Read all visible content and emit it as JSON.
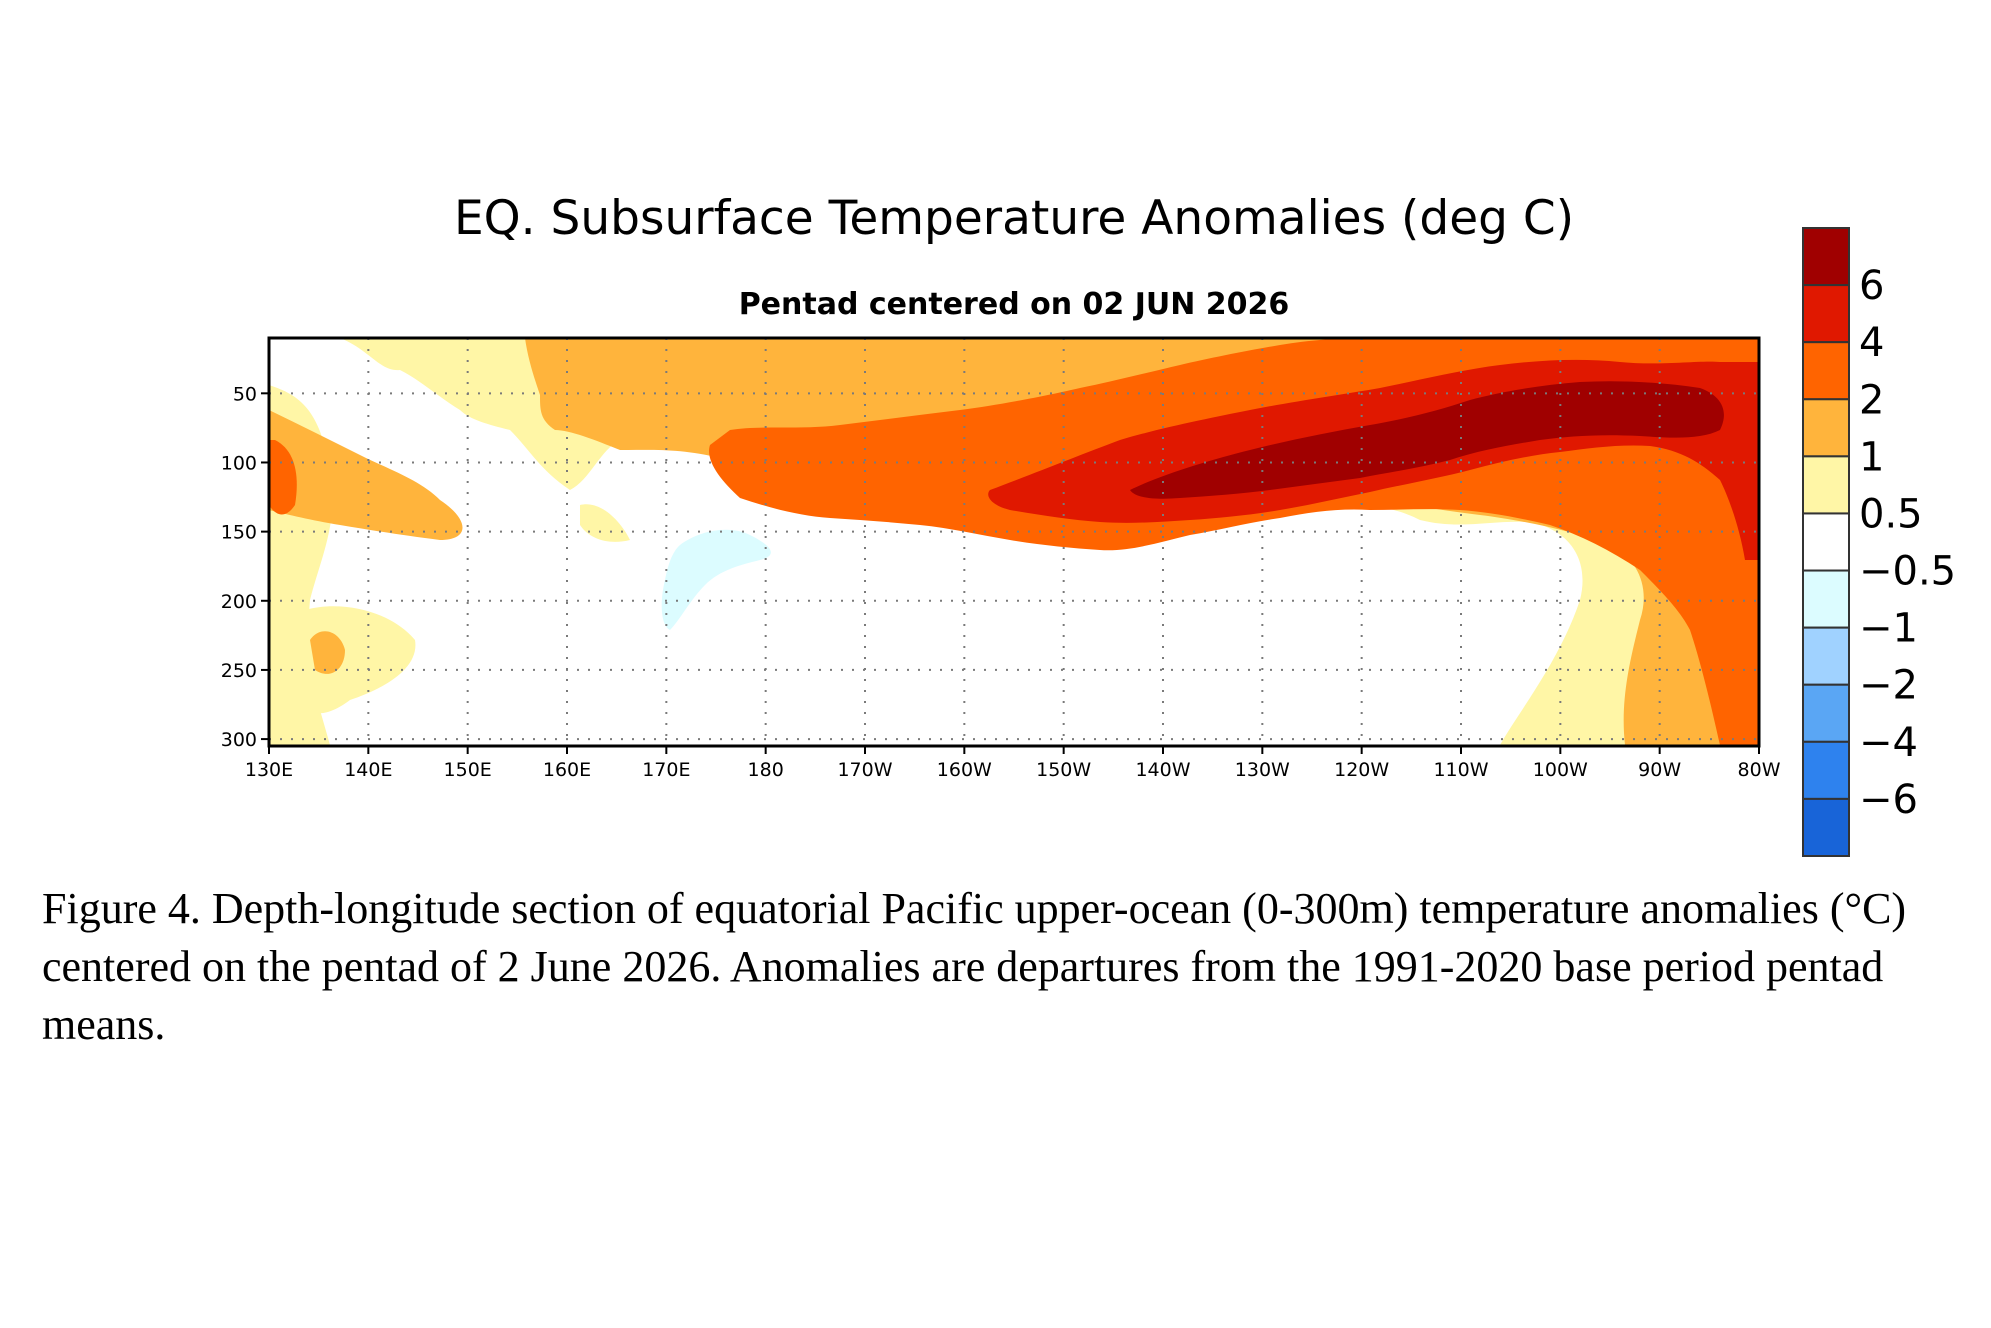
{
  "chart_data": {
    "type": "heatmap",
    "title": "EQ. Subsurface Temperature Anomalies (deg C)",
    "subtitle": "Pentad centered on 02 JUN 2026",
    "xlabel": "",
    "ylabel": "",
    "x_ticks": [
      "130E",
      "140E",
      "150E",
      "160E",
      "170E",
      "180",
      "170W",
      "160W",
      "150W",
      "140W",
      "130W",
      "120W",
      "110W",
      "100W",
      "90W",
      "80W"
    ],
    "x_tick_values_deg_east": [
      130,
      140,
      150,
      160,
      170,
      180,
      190,
      200,
      210,
      220,
      230,
      240,
      250,
      260,
      270,
      280
    ],
    "y_ticks": [
      50,
      100,
      150,
      200,
      250,
      300
    ],
    "xlim_deg_east": [
      130,
      280
    ],
    "ylim_depth_m": [
      10,
      305
    ],
    "y_axis_inverted": true,
    "grid": "dotted",
    "colorbar": {
      "position": "right",
      "labels": [
        "6",
        "4",
        "2",
        "1",
        "0.5",
        "−0.5",
        "−1",
        "−2",
        "−4",
        "−6"
      ],
      "colors": [
        "#a00000",
        "#e01800",
        "#ff6400",
        "#ffb43c",
        "#fff6a6",
        "#ffffff",
        "#dcfcff",
        "#a0d2ff",
        "#5aa6f4",
        "#2e82ee",
        "#1864d8"
      ]
    },
    "features": [
      {
        "description_level": "peak_above_6",
        "center_lon_deg_east": 232,
        "center_depth_m": 95,
        "value": 6.5
      },
      {
        "description_level": "above_4",
        "center_lon_deg_east": 240,
        "center_depth_m": 90,
        "value": 4.5
      },
      {
        "description_level": "above_2",
        "center_lon_deg_east": 230,
        "center_depth_m": 90,
        "value": 2.5
      },
      {
        "description_level": "cold_patch",
        "center_lon_deg_east": 173,
        "center_depth_m": 180,
        "value": -0.7
      }
    ]
  },
  "caption": "Figure 4. Depth-longitude section of equatorial Pacific upper-ocean (0-300m) temperature anomalies (°C) centered on the pentad of 2 June 2026. Anomalies are departures from the 1991-2020 base period pentad means."
}
